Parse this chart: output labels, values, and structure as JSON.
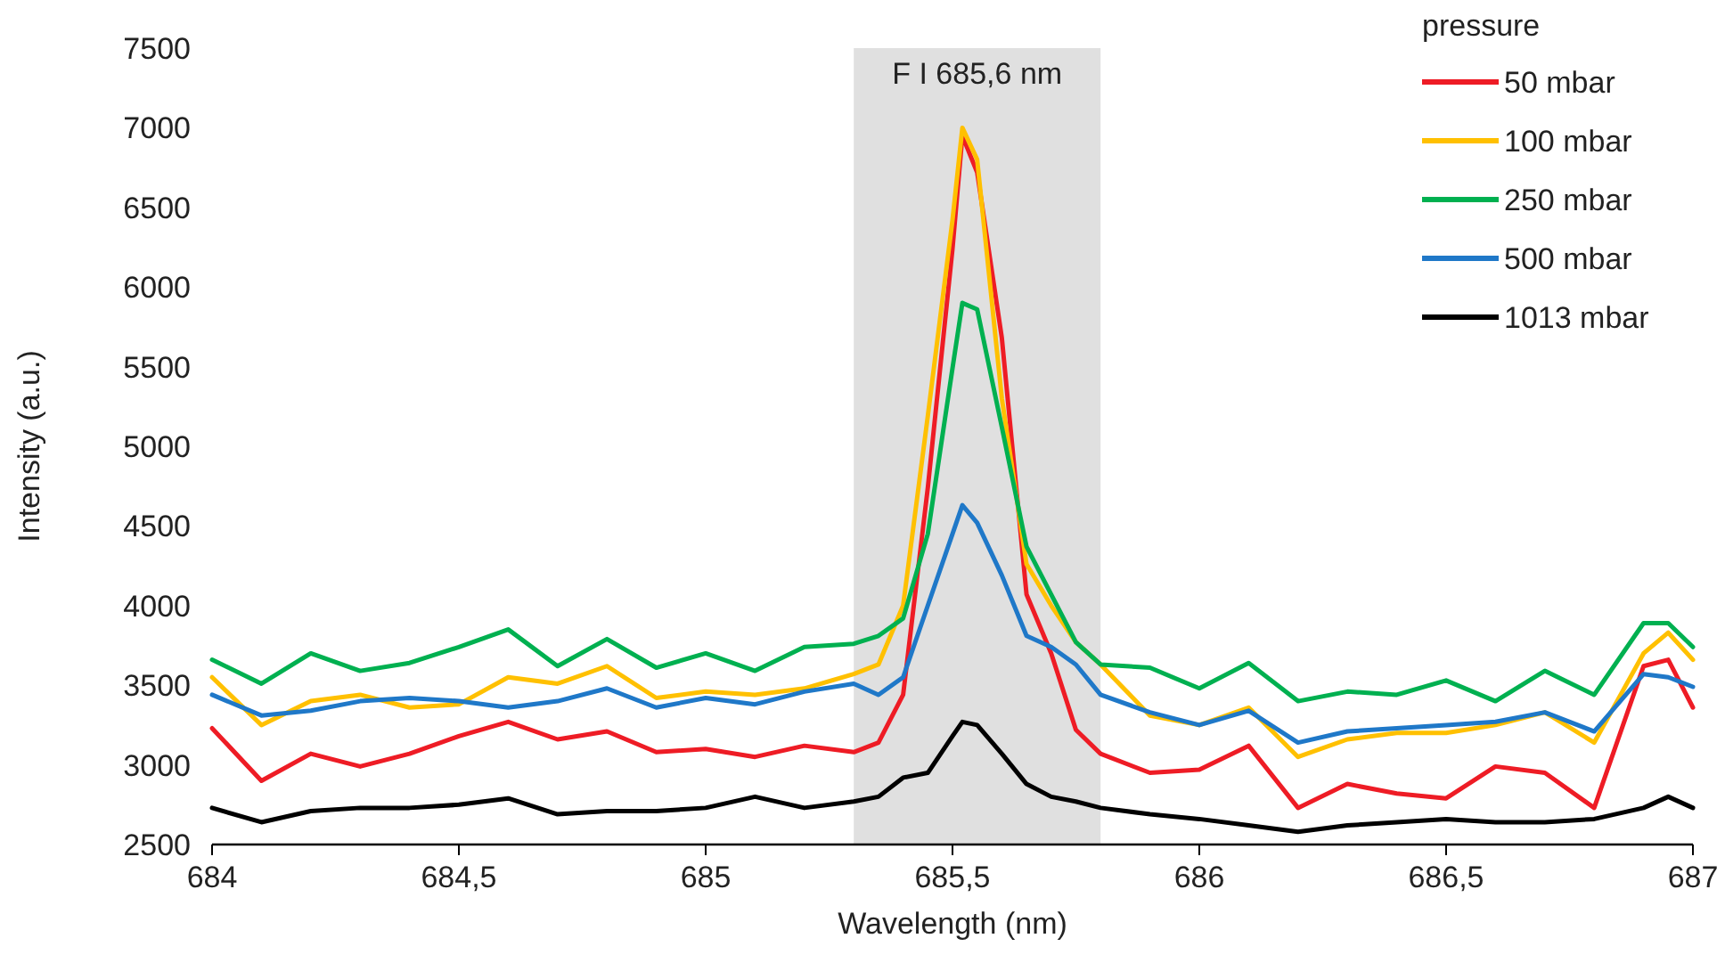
{
  "chart_data": {
    "type": "line",
    "xlabel": "Wavelength (nm)",
    "ylabel": "Intensity (a.u.)",
    "legend_title": "pressure",
    "legend": "top right",
    "grid": false,
    "marker": "none",
    "line_style": "solid",
    "x": [
      684,
      684.1,
      684.2,
      684.3,
      684.4,
      684.5,
      684.6,
      684.7,
      684.8,
      684.9,
      685,
      685.1,
      685.2,
      685.3,
      685.35,
      685.4,
      685.45,
      685.5,
      685.52,
      685.55,
      685.6,
      685.65,
      685.7,
      685.75,
      685.8,
      685.9,
      686,
      686.1,
      686.2,
      686.3,
      686.4,
      686.5,
      686.6,
      686.7,
      686.8,
      686.9,
      686.95,
      687
    ],
    "xlim": [
      684,
      687
    ],
    "xticks": [
      684,
      {
        "value": 684.5,
        "label": "684,5"
      },
      685,
      {
        "value": 685.5,
        "label": "685,5"
      },
      686,
      {
        "value": 686.5,
        "label": "686,5"
      },
      687
    ],
    "ylim": [
      2500,
      7500
    ],
    "yticks": [
      2500,
      3000,
      3500,
      4000,
      4500,
      5000,
      5500,
      6000,
      6500,
      7000,
      7500
    ],
    "bands": [
      {
        "axis": "x",
        "from": 685.3,
        "to": 685.8,
        "label": "F I 685,6 nm",
        "color": "#e0e0e0"
      }
    ],
    "series": [
      {
        "name": "50 mbar",
        "color": "#ee1c25",
        "values": [
          3230,
          2900,
          3070,
          2990,
          3070,
          3180,
          3270,
          3160,
          3210,
          3080,
          3100,
          3050,
          3120,
          3080,
          3140,
          3440,
          4740,
          6240,
          6950,
          6720,
          5680,
          4070,
          3700,
          3220,
          3070,
          2950,
          2970,
          3120,
          2730,
          2880,
          2820,
          2790,
          2990,
          2950,
          2730,
          3620,
          3660,
          3360
        ]
      },
      {
        "name": "100 mbar",
        "color": "#ffc000",
        "values": [
          3550,
          3250,
          3400,
          3440,
          3360,
          3380,
          3550,
          3510,
          3620,
          3420,
          3460,
          3440,
          3480,
          3570,
          3630,
          4000,
          5190,
          6420,
          7000,
          6800,
          5300,
          4260,
          4000,
          3770,
          3630,
          3310,
          3250,
          3360,
          3050,
          3160,
          3200,
          3200,
          3250,
          3330,
          3140,
          3700,
          3830,
          3660
        ]
      },
      {
        "name": "250 mbar",
        "color": "#00b050",
        "values": [
          3660,
          3510,
          3700,
          3590,
          3640,
          3740,
          3850,
          3620,
          3790,
          3610,
          3700,
          3590,
          3740,
          3760,
          3810,
          3920,
          4450,
          5490,
          5900,
          5860,
          5120,
          4370,
          4070,
          3770,
          3630,
          3610,
          3480,
          3640,
          3400,
          3460,
          3440,
          3530,
          3400,
          3590,
          3440,
          3890,
          3890,
          3740
        ]
      },
      {
        "name": "500 mbar",
        "color": "#1f78c8",
        "values": [
          3440,
          3310,
          3340,
          3400,
          3420,
          3400,
          3360,
          3400,
          3480,
          3360,
          3420,
          3380,
          3460,
          3510,
          3440,
          3550,
          4000,
          4450,
          4630,
          4520,
          4190,
          3810,
          3740,
          3630,
          3440,
          3330,
          3250,
          3340,
          3140,
          3210,
          3230,
          3250,
          3270,
          3330,
          3210,
          3570,
          3550,
          3490
        ]
      },
      {
        "name": "1013 mbar",
        "color": "#000000",
        "values": [
          2730,
          2640,
          2710,
          2730,
          2730,
          2750,
          2790,
          2690,
          2710,
          2710,
          2730,
          2800,
          2730,
          2770,
          2800,
          2920,
          2950,
          3180,
          3270,
          3250,
          3070,
          2880,
          2800,
          2770,
          2730,
          2690,
          2660,
          2620,
          2580,
          2620,
          2640,
          2660,
          2640,
          2640,
          2660,
          2730,
          2800,
          2730
        ]
      }
    ]
  }
}
